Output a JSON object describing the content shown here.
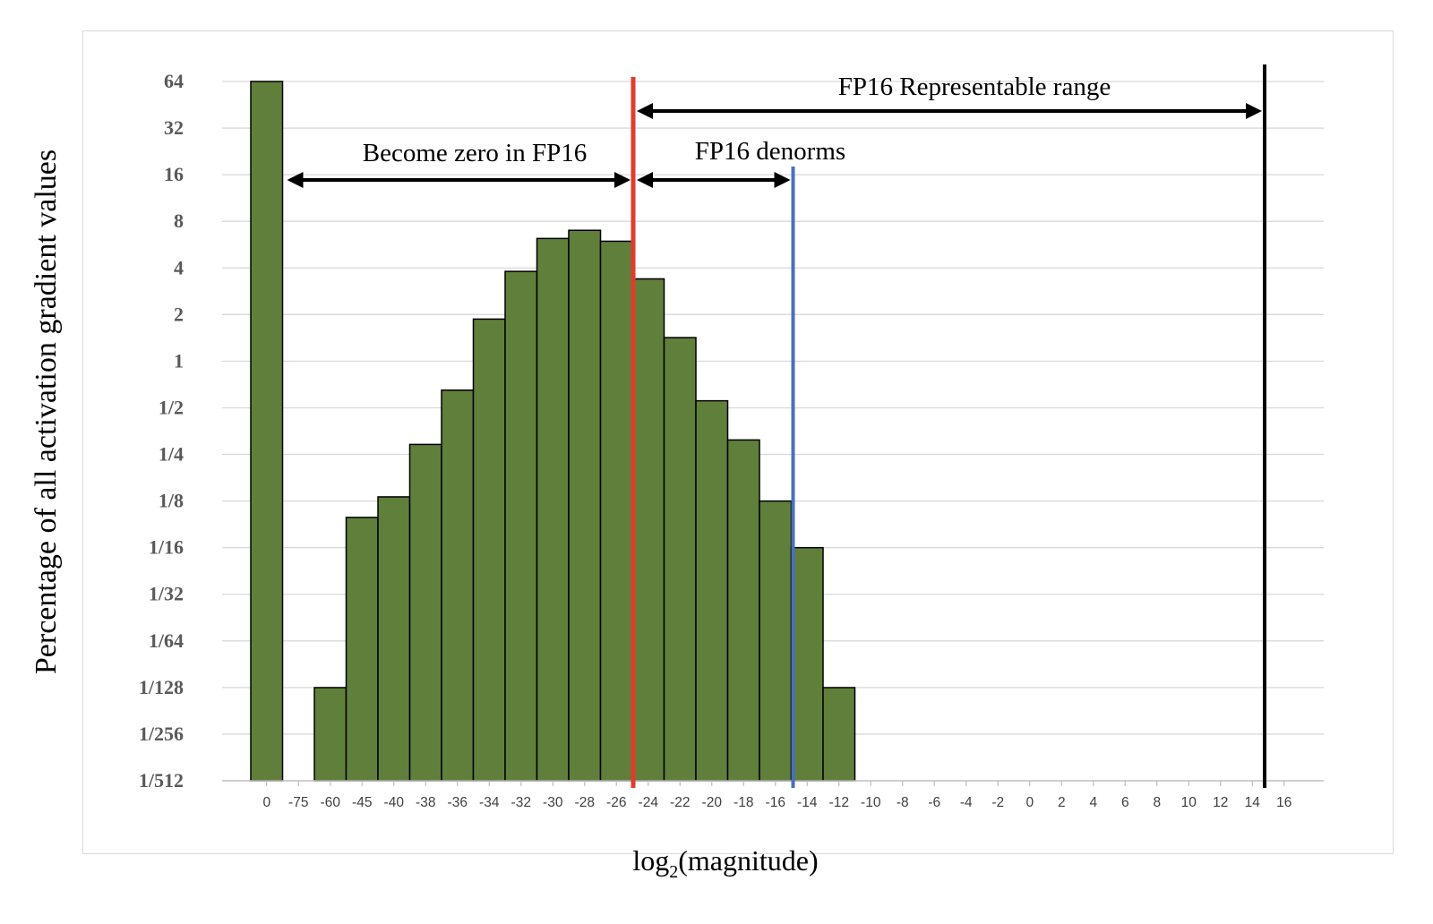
{
  "chart_data": {
    "type": "bar",
    "ylabel": "Percentage of all activation gradient values",
    "xlabel_main": "log",
    "xlabel_sub": "2",
    "xlabel_tail": "(magnitude)",
    "y_scale": "log2",
    "ylim": [
      0.001953125,
      64
    ],
    "y_ticks": [
      "64",
      "32",
      "16",
      "8",
      "4",
      "2",
      "1",
      "1/2",
      "1/4",
      "1/8",
      "1/16",
      "1/32",
      "1/64",
      "1/128",
      "1/256",
      "1/512"
    ],
    "categories": [
      "0",
      "-75",
      "-60",
      "-45",
      "-40",
      "-38",
      "-36",
      "-34",
      "-32",
      "-30",
      "-28",
      "-26",
      "-24",
      "-22",
      "-20",
      "-18",
      "-16",
      "-14",
      "-12",
      "-10",
      "-8",
      "-6",
      "-4",
      "-2",
      "0",
      "2",
      "4",
      "6",
      "8",
      "10",
      "12",
      "14",
      "16"
    ],
    "values": [
      64,
      null,
      0.0078,
      0.098,
      0.133,
      0.29,
      0.65,
      1.87,
      3.8,
      6.2,
      7.0,
      5.95,
      3.4,
      1.42,
      0.555,
      0.31,
      0.125,
      0.0625,
      0.0078,
      null,
      null,
      null,
      null,
      null,
      null,
      null,
      null,
      null,
      null,
      null,
      null,
      null,
      null
    ],
    "bar_color": "#5f7f3b",
    "grid": true,
    "reference_lines": [
      {
        "label": "",
        "x": "-24",
        "color": "#e03c2c"
      },
      {
        "label": "",
        "x": "-14",
        "color": "#4a6fc0"
      },
      {
        "label": "",
        "x": "16",
        "color": "#000000"
      }
    ],
    "annotations": [
      {
        "text": "FP16 Representable range"
      },
      {
        "text": "Become zero in FP16"
      },
      {
        "text": "FP16 denorms"
      }
    ]
  }
}
